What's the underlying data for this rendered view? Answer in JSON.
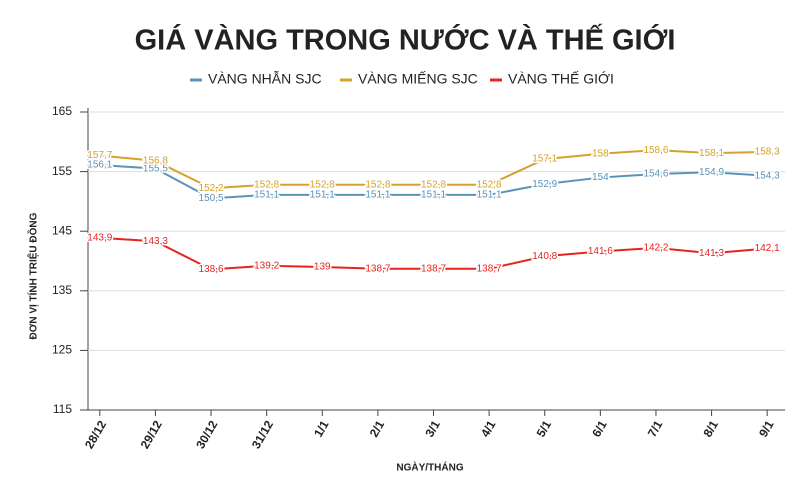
{
  "chart_data": {
    "type": "line",
    "title": "GIÁ VÀNG TRONG NƯỚC VÀ THẾ GIỚI",
    "y_label": "ĐƠN VỊ TÍNH TRIỆU ĐỒNG",
    "x_label": "NGÀY/THÁNG",
    "categories": [
      "28/12",
      "29/12",
      "30/12",
      "31/12",
      "1/1",
      "2/1",
      "3/1",
      "4/1",
      "5/1",
      "6/1",
      "7/1",
      "8/1",
      "9/1"
    ],
    "series": [
      {
        "name": "VÀNG NHẪN SJC",
        "color": "#5b93b8",
        "values": [
          156.1,
          155.5,
          150.5,
          151.1,
          151.1,
          151.1,
          151.1,
          151.1,
          152.9,
          154,
          154.6,
          154.9,
          154.3
        ],
        "value_labels": [
          "156,1",
          "155,5",
          "150,5",
          "151,1",
          "151,1",
          "151,1",
          "151,1",
          "151,1",
          "152,9",
          "154",
          "154,6",
          "154,9",
          "154,3"
        ]
      },
      {
        "name": "VÀNG MIẾNG SJC",
        "color": "#d4a22a",
        "values": [
          157.7,
          156.8,
          152.2,
          152.8,
          152.8,
          152.8,
          152.8,
          152.8,
          157.1,
          158,
          158.6,
          158.1,
          158.3
        ],
        "value_labels": [
          "157,7",
          "156,8",
          "152,2",
          "152,8",
          "152,8",
          "152,8",
          "152,8",
          "152,8",
          "157,1",
          "158",
          "158,6",
          "158,1",
          "158,3"
        ]
      },
      {
        "name": "VÀNG THẾ GIỚI",
        "color": "#e8231f",
        "values": [
          143.9,
          143.3,
          138.6,
          139.2,
          139,
          138.7,
          138.7,
          138.7,
          140.8,
          141.6,
          142.2,
          141.3,
          142.1
        ],
        "value_labels": [
          "143,9",
          "143,3",
          "138,6",
          "139,2",
          "139",
          "138,7",
          "138,7",
          "138,7",
          "140,8",
          "141,6",
          "142,2",
          "141,3",
          "142,1"
        ]
      }
    ],
    "ylim": [
      115,
      165
    ],
    "yticks": [
      115,
      125,
      135,
      145,
      155,
      165
    ],
    "grid": true,
    "legend": "top"
  }
}
